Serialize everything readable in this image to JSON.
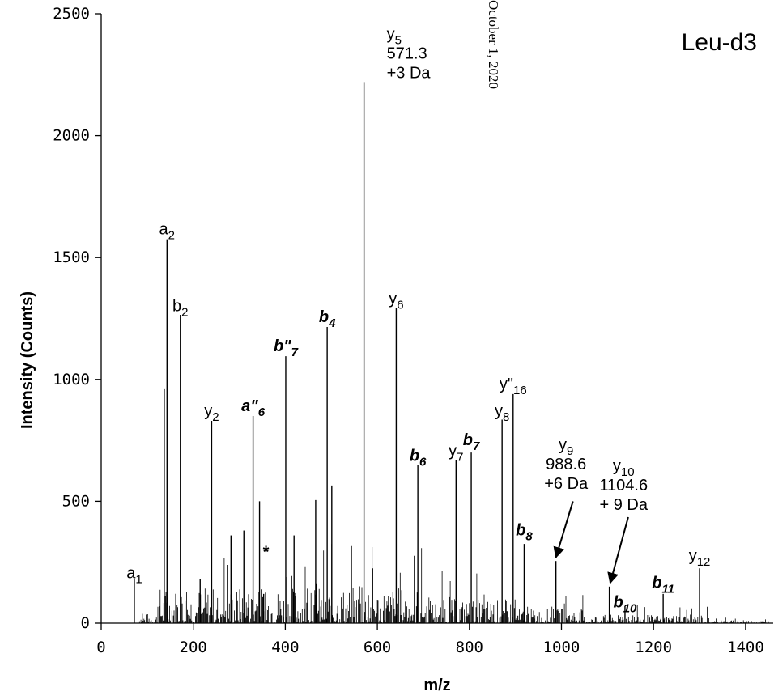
{
  "chart_data": {
    "type": "bar",
    "panel_label": "Leu-d3",
    "side_stamp": "October 1, 2020",
    "xlabel": "m/z",
    "ylabel": "Intensity (Counts)",
    "xlim": [
      0,
      1460
    ],
    "ylim": [
      0,
      2500
    ],
    "x_ticks": [
      0,
      200,
      400,
      600,
      800,
      1000,
      1200,
      1400
    ],
    "y_ticks": [
      0,
      500,
      1000,
      1500,
      2000,
      2500
    ],
    "peaks": [
      {
        "mz": 72,
        "intensity": 180
      },
      {
        "mz": 137,
        "intensity": 960
      },
      {
        "mz": 143,
        "intensity": 1575
      },
      {
        "mz": 172,
        "intensity": 1265
      },
      {
        "mz": 215,
        "intensity": 180
      },
      {
        "mz": 240,
        "intensity": 830
      },
      {
        "mz": 282,
        "intensity": 360
      },
      {
        "mz": 310,
        "intensity": 380
      },
      {
        "mz": 330,
        "intensity": 850
      },
      {
        "mz": 344,
        "intensity": 500
      },
      {
        "mz": 353,
        "intensity": 120
      },
      {
        "mz": 401,
        "intensity": 1095
      },
      {
        "mz": 419,
        "intensity": 360
      },
      {
        "mz": 466,
        "intensity": 505
      },
      {
        "mz": 491,
        "intensity": 1215
      },
      {
        "mz": 501,
        "intensity": 565
      },
      {
        "mz": 571,
        "intensity": 2220
      },
      {
        "mz": 641,
        "intensity": 1295
      },
      {
        "mz": 688,
        "intensity": 650
      },
      {
        "mz": 771,
        "intensity": 670
      },
      {
        "mz": 804,
        "intensity": 700
      },
      {
        "mz": 871,
        "intensity": 835
      },
      {
        "mz": 895,
        "intensity": 940
      },
      {
        "mz": 919,
        "intensity": 325
      },
      {
        "mz": 988,
        "intensity": 255
      },
      {
        "mz": 1104,
        "intensity": 150
      },
      {
        "mz": 1138,
        "intensity": 70
      },
      {
        "mz": 1221,
        "intensity": 120
      },
      {
        "mz": 1300,
        "intensity": 225
      }
    ],
    "annotations": [
      {
        "label": "a",
        "sub": "1",
        "mz": 72,
        "style": "normal",
        "text_y": 185
      },
      {
        "label": "a",
        "sub": "2",
        "mz": 143,
        "style": "normal",
        "text_y": 1595
      },
      {
        "label": "b",
        "sub": "2",
        "mz": 172,
        "style": "normal",
        "text_y": 1280
      },
      {
        "label": "y",
        "sub": "2",
        "mz": 240,
        "style": "normal",
        "text_y": 850
      },
      {
        "label": "a\"",
        "sub": "6",
        "mz": 330,
        "style": "bold-italic",
        "text_y": 870
      },
      {
        "label": "b\"",
        "sub": "7",
        "mz": 401,
        "style": "bold-italic",
        "text_y": 1115
      },
      {
        "label": "b",
        "sub": "4",
        "mz": 491,
        "style": "bold-italic",
        "text_y": 1235
      },
      {
        "label": "y",
        "sub": "5",
        "mz": 571,
        "style": "normal",
        "text_y": 2395,
        "extra": [
          "571.3",
          "+3 Da"
        ],
        "anchor": "start",
        "dx": 28
      },
      {
        "label": "y",
        "sub": "6",
        "mz": 641,
        "style": "normal",
        "text_y": 1310
      },
      {
        "label": "b",
        "sub": "6",
        "mz": 688,
        "style": "bold-italic",
        "text_y": 665
      },
      {
        "label": "y",
        "sub": "7",
        "mz": 771,
        "style": "normal",
        "text_y": 685
      },
      {
        "label": "b",
        "sub": "7",
        "mz": 804,
        "style": "bold-italic",
        "text_y": 730
      },
      {
        "label": "y",
        "sub": "8",
        "mz": 871,
        "style": "normal",
        "text_y": 850
      },
      {
        "label": "y\"",
        "sub": "16",
        "mz": 895,
        "style": "normal",
        "text_y": 960
      },
      {
        "label": "b",
        "sub": "8",
        "mz": 919,
        "style": "bold-italic",
        "text_y": 360
      },
      {
        "label": "y",
        "sub": "9",
        "mz": 1010,
        "style": "normal",
        "text_y": 710,
        "extra": [
          "988.6",
          "+6 Da"
        ]
      },
      {
        "label": "y",
        "sub": "10",
        "mz": 1135,
        "style": "normal",
        "text_y": 625,
        "extra": [
          "1104.6",
          "+ 9 Da"
        ]
      },
      {
        "label": "b",
        "sub": "10",
        "mz": 1138,
        "style": "bold-italic",
        "text_y": 65
      },
      {
        "label": "b",
        "sub": "11",
        "mz": 1221,
        "style": "bold-italic",
        "text_y": 145
      },
      {
        "label": "y",
        "sub": "12",
        "mz": 1300,
        "style": "normal",
        "text_y": 255
      },
      {
        "label": "*",
        "sub": "",
        "mz": 358,
        "style": "bold",
        "text_y": 270
      }
    ],
    "arrows": [
      {
        "from": [
          1025,
          500
        ],
        "to": [
          988,
          270
        ]
      },
      {
        "from": [
          1145,
          435
        ],
        "to": [
          1106,
          165
        ]
      }
    ]
  }
}
